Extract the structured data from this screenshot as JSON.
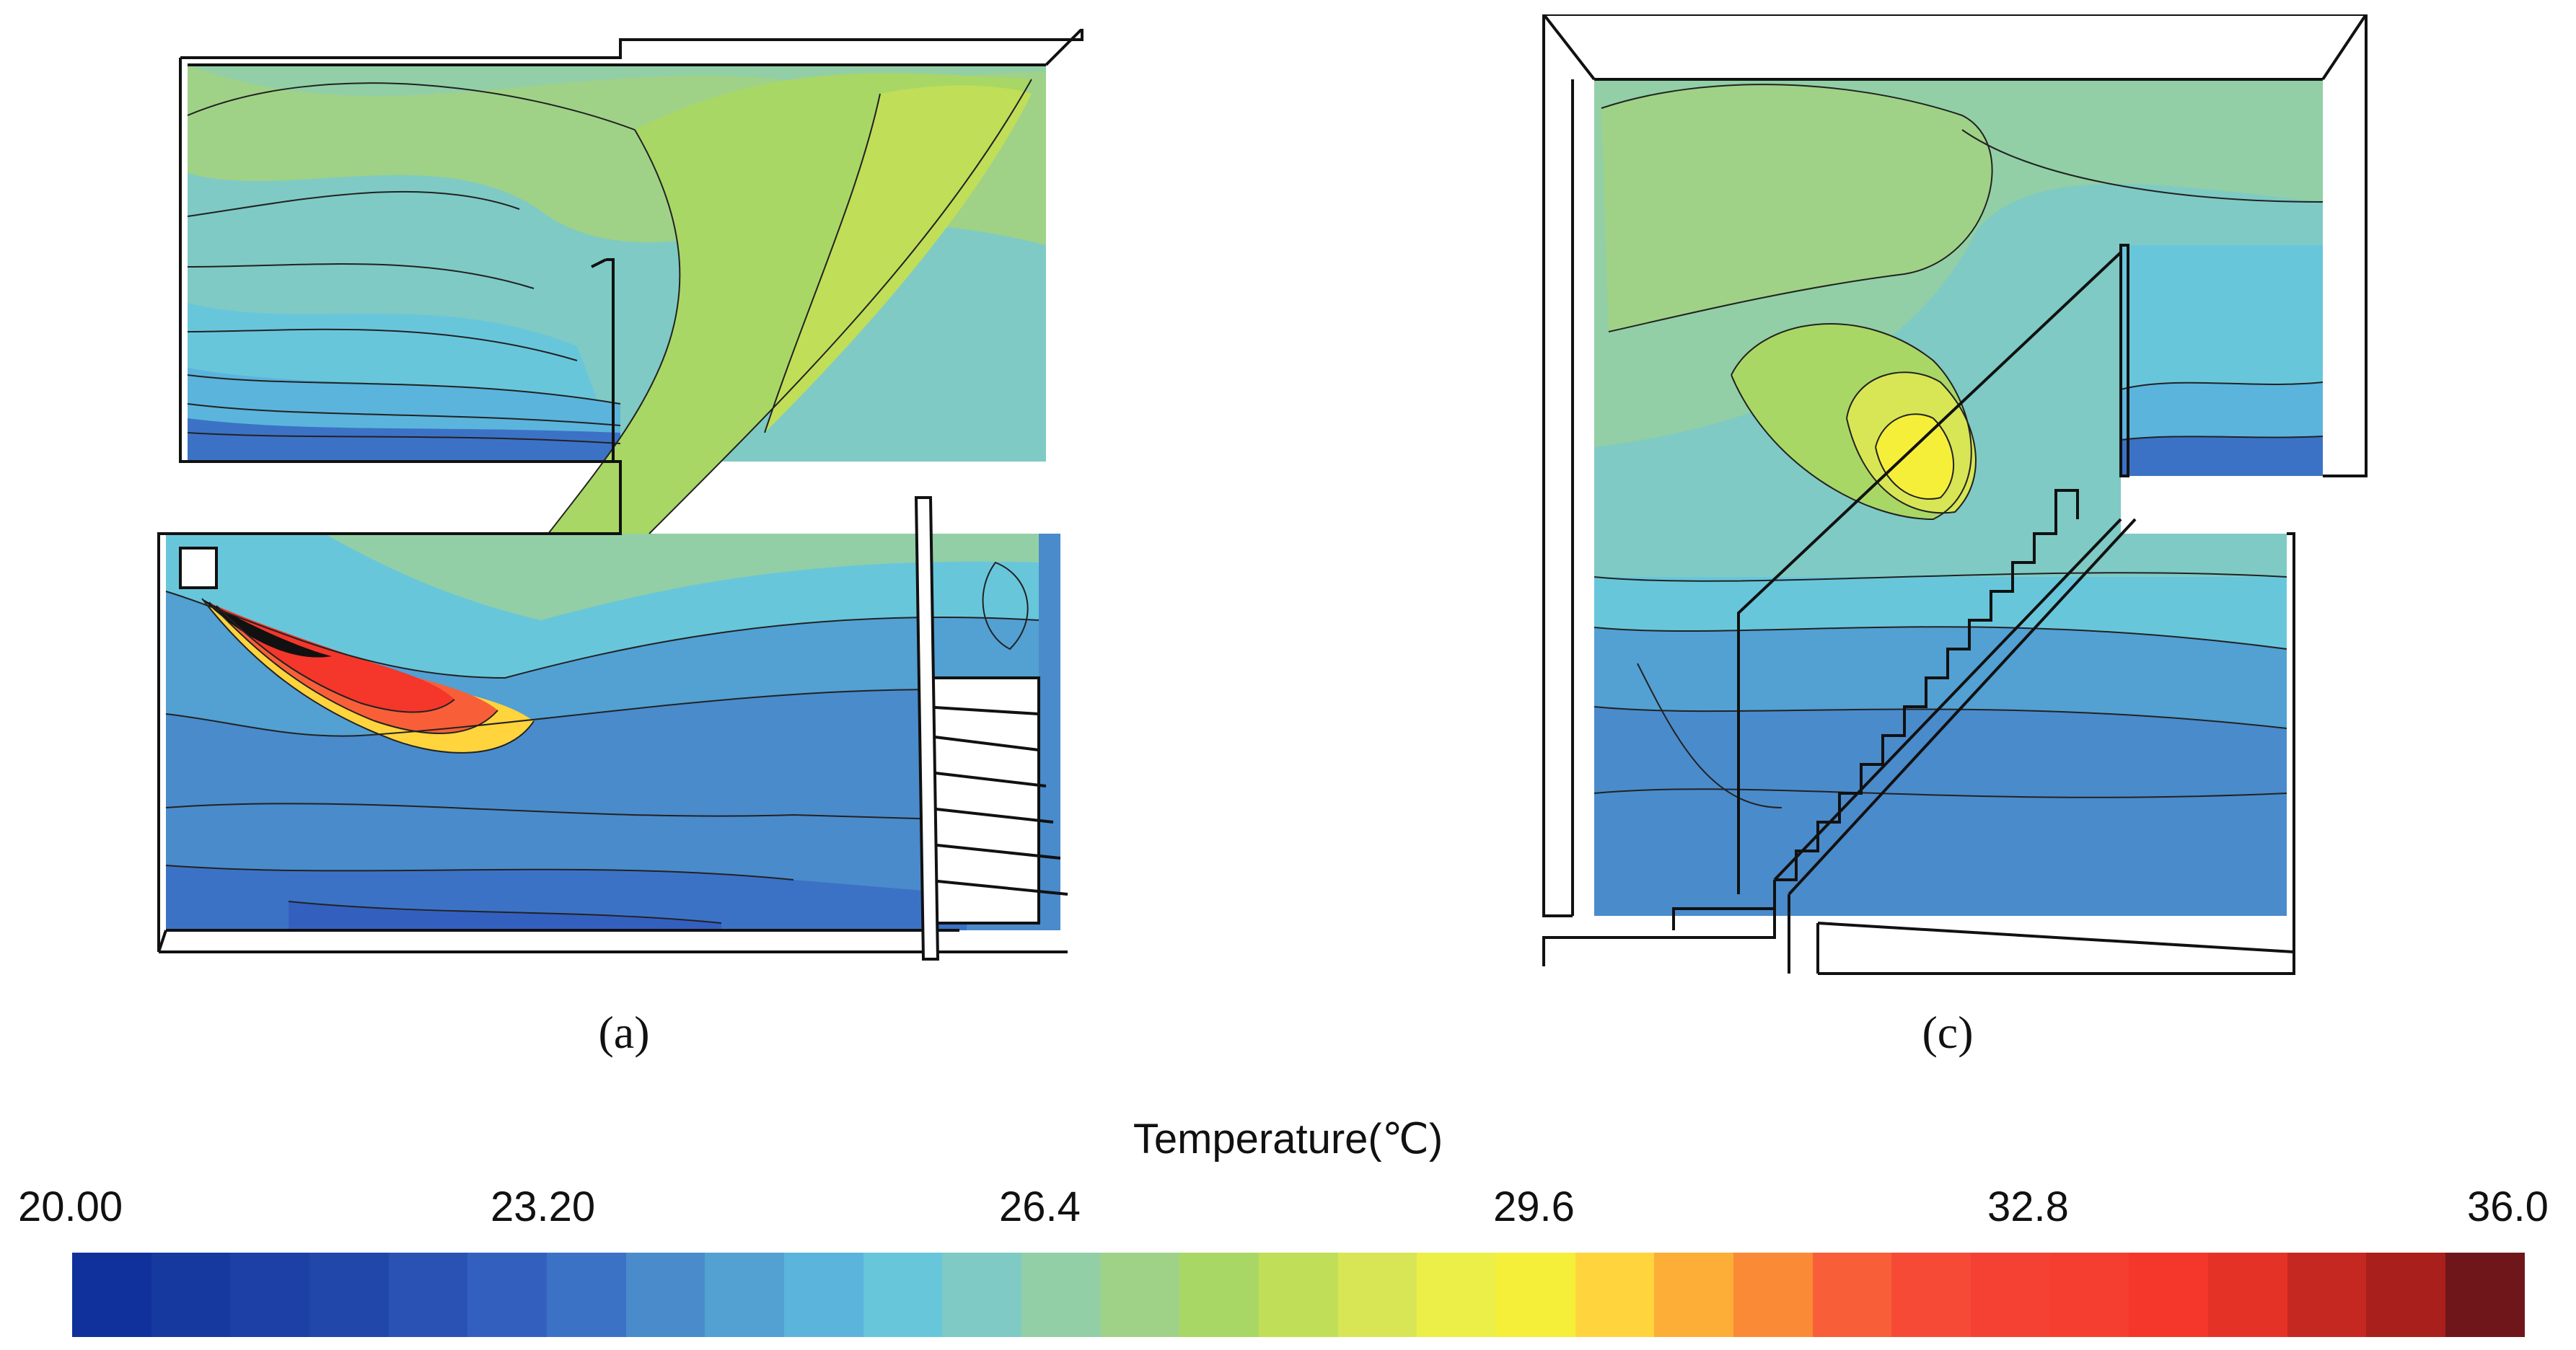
{
  "panels": [
    {
      "id": "a",
      "caption": "(a)"
    },
    {
      "id": "c",
      "caption": "(c)"
    }
  ],
  "legend": {
    "title": "Temperature(℃)",
    "ticks": [
      "20.00",
      "23.20",
      "26.4",
      "29.6",
      "32.8",
      "36.0"
    ],
    "min": 20.0,
    "max": 36.0,
    "colors": [
      "#10319b",
      "#16399f",
      "#1c40a5",
      "#2147ab",
      "#2a52b4",
      "#3360bf",
      "#3c72c6",
      "#4a8bcb",
      "#53a0d3",
      "#5bb4dc",
      "#68c6db",
      "#7fcac4",
      "#92cfa6",
      "#9fd287",
      "#a9d765",
      "#c0de58",
      "#d8e656",
      "#ecef47",
      "#f6ef3a",
      "#ffd43d",
      "#fcae37",
      "#fb8a37",
      "#f85f38",
      "#f64a36",
      "#f54134",
      "#f53e2f",
      "#f4362b",
      "#e53227",
      "#c42821",
      "#a81f1c",
      "#6e161a"
    ]
  }
}
